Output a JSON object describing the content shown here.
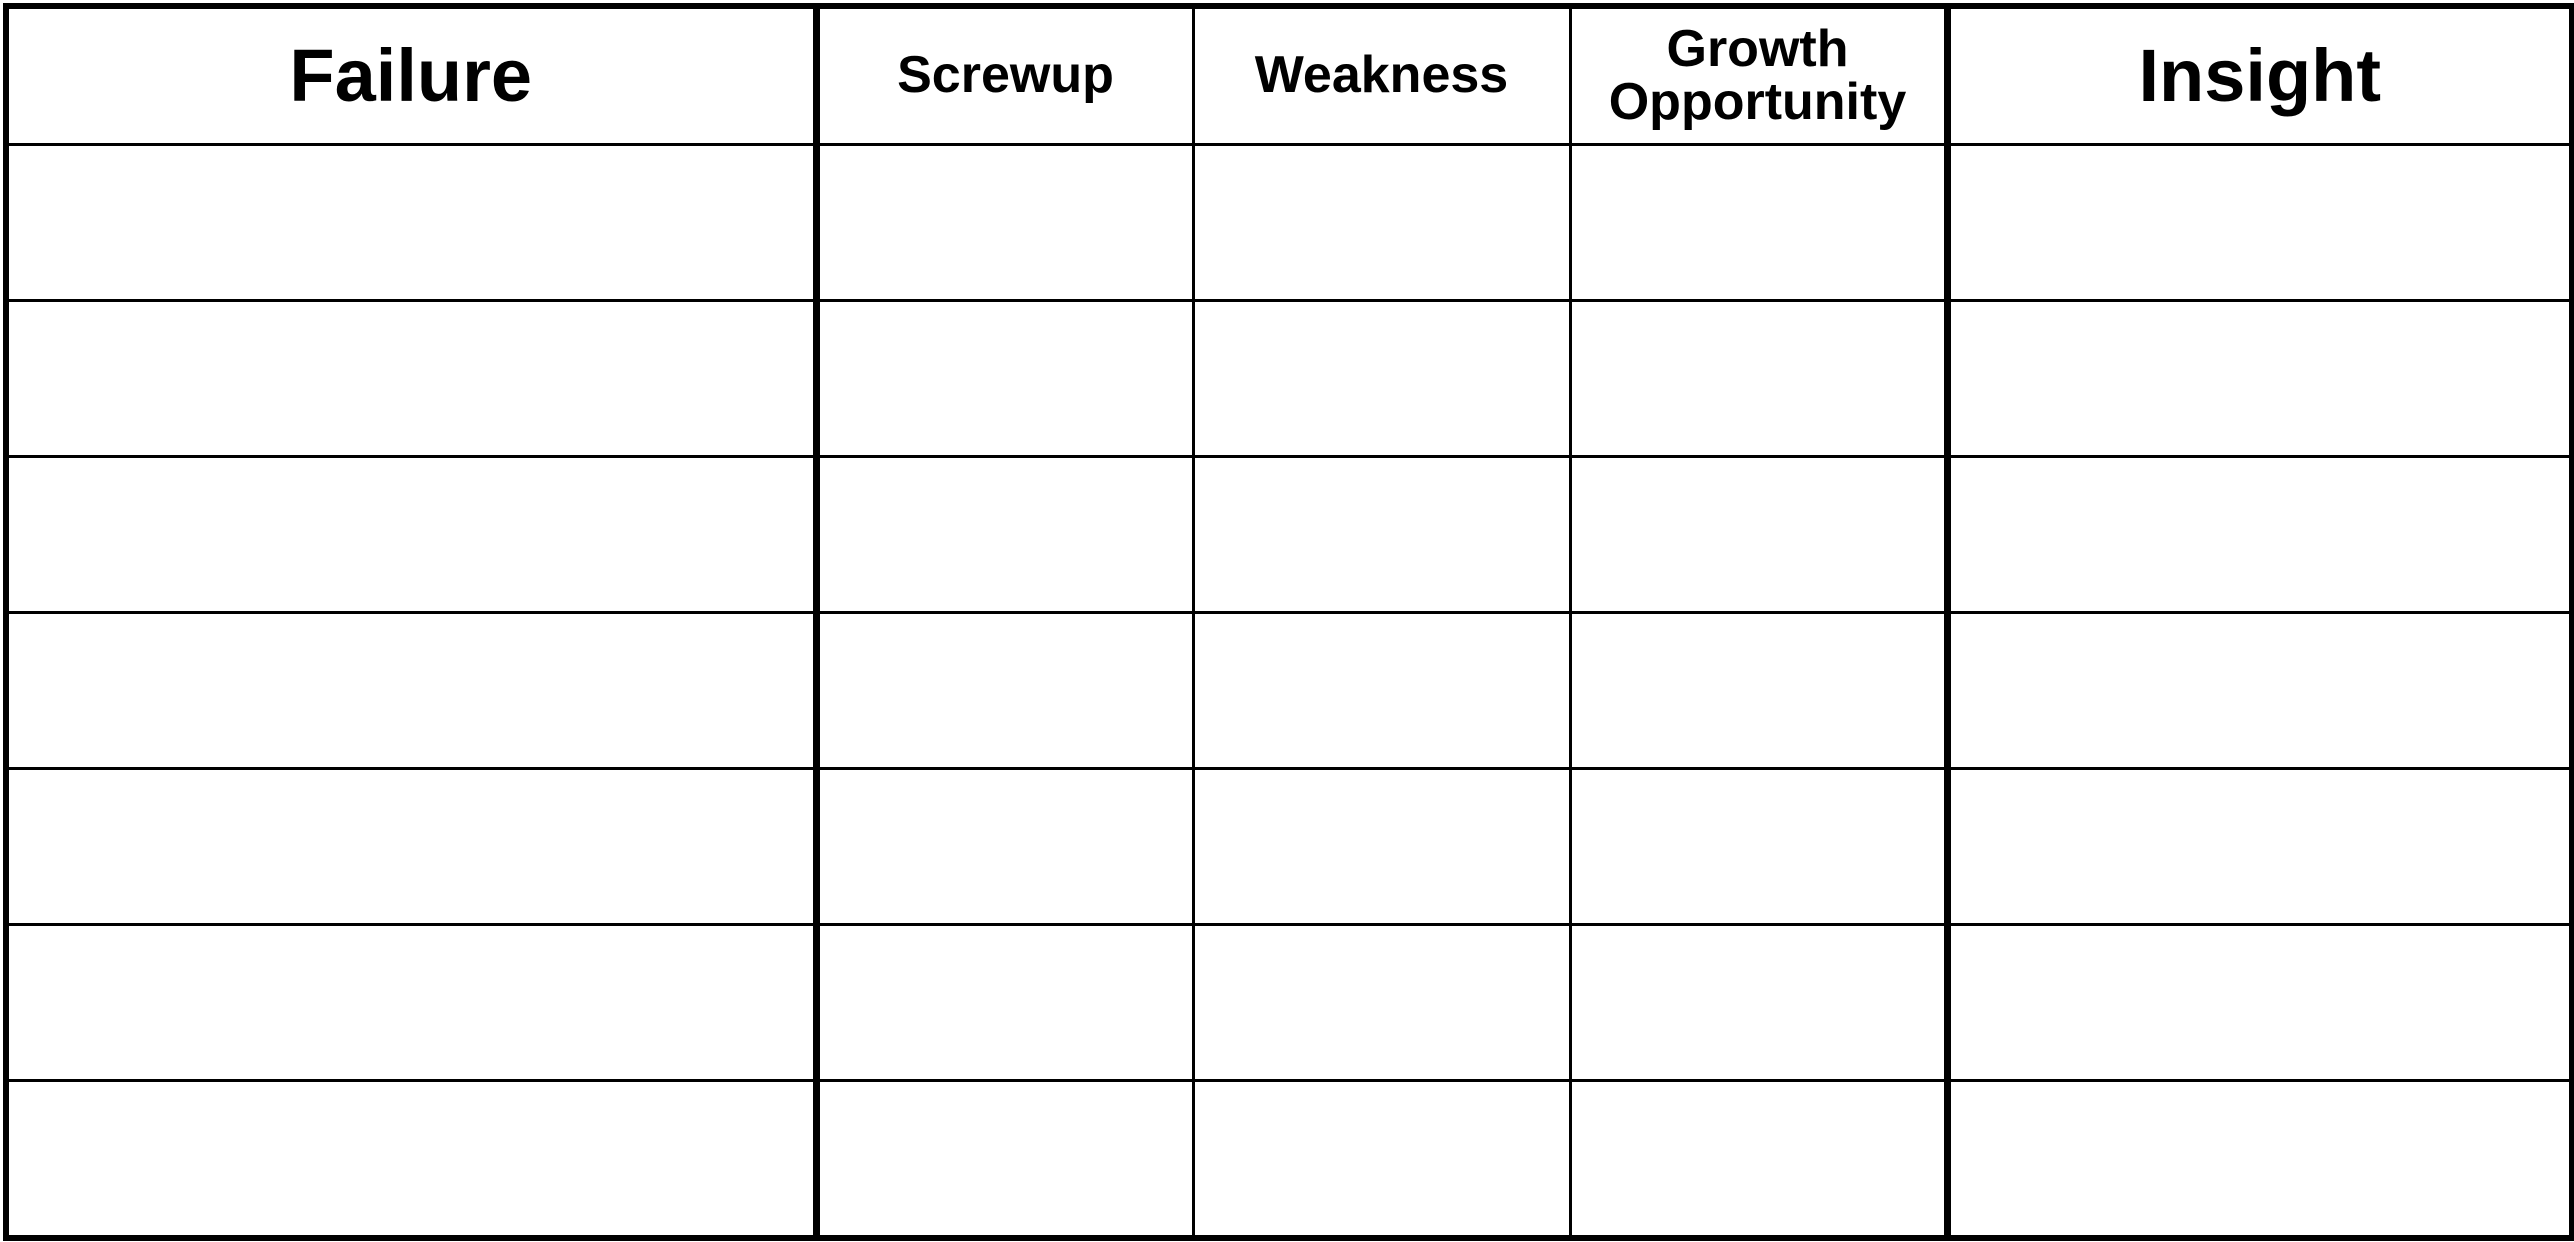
{
  "table": {
    "headers": {
      "failure": "Failure",
      "screwup": "Screwup",
      "weakness": "Weakness",
      "growth_line1": "Growth",
      "growth_line2": "Opportunity",
      "insight": "Insight"
    },
    "blank_rows": 7
  }
}
